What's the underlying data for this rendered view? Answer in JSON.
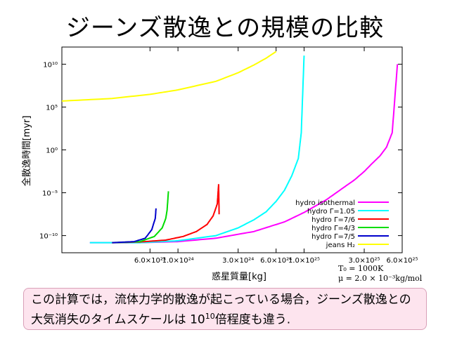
{
  "slide": {
    "title": "ジーンズ散逸との規模の比較",
    "caption_part1": "この計算では，流体力学的散逸が起こっている場合，ジーンズ散逸との大気消失のタイムスケールは 10",
    "caption_exp": "10",
    "caption_part2": "倍程度も違う."
  },
  "params": {
    "t0": "T₀ = 1000K",
    "mu": "μ = 2.0 × 10⁻³kg/mol"
  },
  "colors": {
    "hydro_isothermal": "#ff00ff",
    "hydro_105": "#00ffff",
    "hydro_76": "#ff0000",
    "hydro_43": "#00dd00",
    "hydro_75": "#0000cc",
    "jeans_h2": "#ffff00"
  },
  "chart_data": {
    "type": "line",
    "x_scale": "log",
    "y_scale": "log",
    "xlabel": "惑星質量[kg]",
    "ylabel": "全散逸時間[myr]",
    "xlim": [
      1.2e+23,
      6e+25
    ],
    "ylim": [
      1e-12,
      1000000000000.0
    ],
    "x_ticks": [
      {
        "value": 6e+23,
        "label": "6.0×10²³"
      },
      {
        "value": 1e+24,
        "label": "1.0×10²⁴"
      },
      {
        "value": 3e+24,
        "label": "3.0×10²⁴"
      },
      {
        "value": 6e+24,
        "label": "6.0×10²⁴"
      },
      {
        "value": 1e+25,
        "label": "1.0×10²⁵"
      },
      {
        "value": 3e+25,
        "label": "3.0×10²⁵"
      },
      {
        "value": 6e+25,
        "label": "6.0×10²⁵"
      }
    ],
    "y_ticks": [
      {
        "value": 10000000000.0,
        "label": "10¹⁰"
      },
      {
        "value": 100000.0,
        "label": "10⁵"
      },
      {
        "value": 1.0,
        "label": "10⁰"
      },
      {
        "value": 1e-05,
        "label": "10⁻⁵"
      },
      {
        "value": 1e-10,
        "label": "10⁻¹⁰"
      }
    ],
    "legend_position": "bottom-right",
    "series": [
      {
        "name": "hydro isothermal",
        "color_key": "hydro_isothermal",
        "x": [
          2e+23,
          5e+23,
          1e+24,
          2e+24,
          4e+24,
          7e+24,
          1e+25,
          1.5e+25,
          2e+25,
          2.5e+25,
          3e+25,
          3.5e+25,
          4e+25,
          4.5e+25,
          5e+25,
          5.5e+25
        ],
        "y": [
          1.5e-11,
          1.5e-11,
          2e-11,
          5e-11,
          3e-10,
          4e-09,
          5e-08,
          1.5e-06,
          3e-05,
          0.0003,
          0.003,
          0.03,
          0.2,
          2,
          100.0,
          10000000000.0
        ]
      },
      {
        "name": "hydro Γ=1.05",
        "color_key": "hydro_105",
        "x": [
          2e+23,
          5e+23,
          1e+24,
          2e+24,
          3e+24,
          4e+24,
          5e+24,
          6e+24,
          7e+24,
          8e+24,
          9e+24,
          9.5e+24,
          1e+25
        ],
        "y": [
          1.5e-11,
          1.5e-11,
          2.5e-11,
          1e-10,
          8e-10,
          7e-09,
          6e-08,
          1e-06,
          2e-05,
          0.001,
          0.1,
          100.0,
          100000000000.0
        ]
      },
      {
        "name": "hydro Γ=7/6",
        "color_key": "hydro_76",
        "x": [
          3e+23,
          5e+23,
          8e+23,
          1.1e+24,
          1.4e+24,
          1.7e+24,
          1.9e+24,
          2.05e+24,
          2.1e+24,
          2.12e+24
        ],
        "y": [
          1.5e-11,
          1.8e-11,
          3e-11,
          8e-11,
          3e-10,
          2e-09,
          2e-08,
          5e-07,
          0.0001,
          3e-08
        ]
      },
      {
        "name": "hydro Γ=4/3",
        "color_key": "hydro_43",
        "x": [
          3e+23,
          5e+23,
          6.5e+23,
          7.5e+23,
          8e+23,
          8.2e+23,
          8.4e+23
        ],
        "y": [
          1.5e-11,
          2e-11,
          8e-11,
          8e-10,
          1e-08,
          1e-07,
          1.5e-05
        ]
      },
      {
        "name": "hydro Γ=7/5",
        "color_key": "hydro_75",
        "x": [
          3e+23,
          4.5e+23,
          5.5e+23,
          6.2e+23,
          6.6e+23,
          6.7e+23
        ],
        "y": [
          1.5e-11,
          2e-11,
          5e-11,
          5e-10,
          1e-08,
          1.5e-07
        ]
      },
      {
        "name": "jeans H₂",
        "color_key": "jeans_h2",
        "x": [
          1.2e+23,
          3e+23,
          6e+23,
          1e+24,
          2e+24,
          3e+24,
          4e+24,
          5e+24,
          6e+24
        ],
        "y": [
          500000.0,
          1000000.0,
          3000000.0,
          10000000.0,
          100000000.0,
          1000000000.0,
          8000000000.0,
          50000000000.0,
          300000000000.0
        ]
      }
    ]
  }
}
